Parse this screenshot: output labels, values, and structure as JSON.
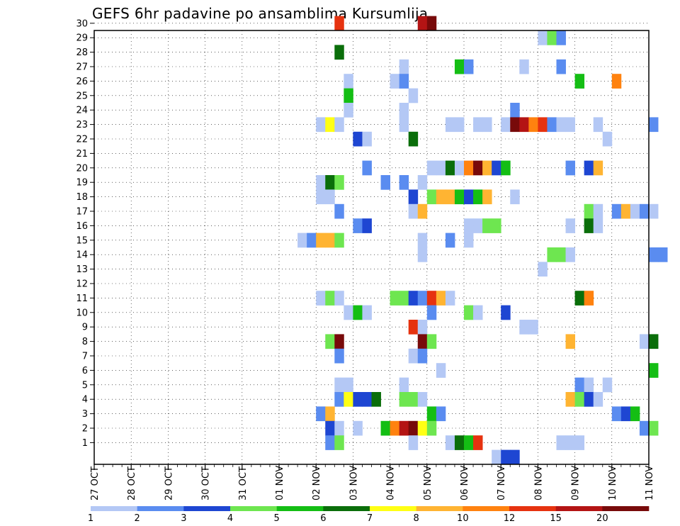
{
  "chart_data": {
    "type": "heatmap",
    "title": "GEFS 6hr padavine po ansamblima Kursumlija",
    "x_ticks": [
      "27 OCT",
      "28 OCT",
      "29 OCT",
      "30 OCT",
      "31 OCT",
      "01 NOV",
      "02 NOV",
      "03 NOV",
      "04 NOV",
      "05 NOV",
      "06 NOV",
      "07 NOV",
      "08 NOV",
      "09 NOV",
      "10 NOV",
      "11 NOV"
    ],
    "y_ticks": [
      1,
      2,
      3,
      4,
      5,
      6,
      7,
      8,
      9,
      10,
      11,
      12,
      13,
      14,
      15,
      16,
      17,
      18,
      19,
      20,
      21,
      22,
      23,
      24,
      25,
      26,
      27,
      28,
      29,
      30
    ],
    "grid": true,
    "legend": {
      "placement": "bottom",
      "labels": [
        "1",
        "2",
        "3",
        "4",
        "5",
        "6",
        "7",
        "8",
        "10",
        "12",
        "15",
        "20"
      ],
      "colors": [
        "#b4c8f5",
        "#5a8cf0",
        "#1e46d2",
        "#6ee650",
        "#14be14",
        "#0a6e0a",
        "#ffff14",
        "#ffb432",
        "#ff820f",
        "#e6320f",
        "#b41414",
        "#780a0a"
      ]
    },
    "level_colors": [
      "#b4c8f5",
      "#5a8cf0",
      "#1e46d2",
      "#6ee650",
      "#14be14",
      "#0a6e0a",
      "#ffff14",
      "#ffb432",
      "#ff820f",
      "#e6320f",
      "#b41414",
      "#780a0a"
    ],
    "cells": [
      {
        "member": 30,
        "start": 26,
        "levels": [
          9
        ]
      },
      {
        "member": 30,
        "start": 35,
        "levels": [
          10,
          11
        ]
      },
      {
        "member": 29,
        "start": 48,
        "levels": [
          0,
          3,
          1
        ]
      },
      {
        "member": 28,
        "start": 26,
        "levels": [
          5
        ]
      },
      {
        "member": 27,
        "start": 33,
        "levels": [
          0
        ]
      },
      {
        "member": 27,
        "start": 39,
        "levels": [
          4,
          1
        ]
      },
      {
        "member": 27,
        "start": 46,
        "levels": [
          0
        ]
      },
      {
        "member": 27,
        "start": 50,
        "levels": [
          1
        ]
      },
      {
        "member": 26,
        "start": 27,
        "levels": [
          0
        ]
      },
      {
        "member": 26,
        "start": 32,
        "levels": [
          0,
          1
        ]
      },
      {
        "member": 26,
        "start": 52,
        "levels": [
          4
        ]
      },
      {
        "member": 26,
        "start": 56,
        "levels": [
          8
        ]
      },
      {
        "member": 25,
        "start": 27,
        "levels": [
          4
        ]
      },
      {
        "member": 25,
        "start": 34,
        "levels": [
          0
        ]
      },
      {
        "member": 24,
        "start": 27,
        "levels": [
          0
        ]
      },
      {
        "member": 24,
        "start": 33,
        "levels": [
          0
        ]
      },
      {
        "member": 24,
        "start": 45,
        "levels": [
          1
        ]
      },
      {
        "member": 23,
        "start": 24,
        "levels": [
          0,
          6,
          0
        ]
      },
      {
        "member": 23,
        "start": 33,
        "levels": [
          0
        ]
      },
      {
        "member": 23,
        "start": 38,
        "levels": [
          0,
          0
        ]
      },
      {
        "member": 23,
        "start": 41,
        "levels": [
          0,
          0
        ]
      },
      {
        "member": 23,
        "start": 44,
        "levels": [
          0,
          11,
          10,
          8,
          9,
          1,
          0,
          0
        ]
      },
      {
        "member": 23,
        "start": 54,
        "levels": [
          0
        ]
      },
      {
        "member": 23,
        "start": 60,
        "levels": [
          1
        ]
      },
      {
        "member": 22,
        "start": 28,
        "levels": [
          2,
          0
        ]
      },
      {
        "member": 22,
        "start": 34,
        "levels": [
          5
        ]
      },
      {
        "member": 22,
        "start": 55,
        "levels": [
          0
        ]
      },
      {
        "member": 20,
        "start": 29,
        "levels": [
          1
        ]
      },
      {
        "member": 20,
        "start": 36,
        "levels": [
          0,
          0,
          5,
          0,
          8,
          11,
          7,
          2,
          4
        ]
      },
      {
        "member": 20,
        "start": 51,
        "levels": [
          1
        ]
      },
      {
        "member": 20,
        "start": 53,
        "levels": [
          2,
          7
        ]
      },
      {
        "member": 19,
        "start": 24,
        "levels": [
          0,
          5,
          3
        ]
      },
      {
        "member": 19,
        "start": 31,
        "levels": [
          1
        ]
      },
      {
        "member": 19,
        "start": 33,
        "levels": [
          1
        ]
      },
      {
        "member": 19,
        "start": 35,
        "levels": [
          0
        ]
      },
      {
        "member": 18,
        "start": 24,
        "levels": [
          0,
          0
        ]
      },
      {
        "member": 18,
        "start": 34,
        "levels": [
          2
        ]
      },
      {
        "member": 18,
        "start": 36,
        "levels": [
          3,
          7,
          7,
          4,
          2,
          4,
          7
        ]
      },
      {
        "member": 18,
        "start": 45,
        "levels": [
          0
        ]
      },
      {
        "member": 17,
        "start": 26,
        "levels": [
          1
        ]
      },
      {
        "member": 17,
        "start": 34,
        "levels": [
          0,
          7
        ]
      },
      {
        "member": 17,
        "start": 53,
        "levels": [
          3,
          0
        ]
      },
      {
        "member": 17,
        "start": 56,
        "levels": [
          1,
          7,
          0,
          1,
          0
        ]
      },
      {
        "member": 16,
        "start": 28,
        "levels": [
          1,
          2
        ]
      },
      {
        "member": 16,
        "start": 40,
        "levels": [
          0,
          0,
          3,
          3
        ]
      },
      {
        "member": 16,
        "start": 51,
        "levels": [
          0
        ]
      },
      {
        "member": 16,
        "start": 53,
        "levels": [
          5
        ]
      },
      {
        "member": 16,
        "start": 54,
        "levels": [
          0
        ]
      },
      {
        "member": 15,
        "start": 22,
        "levels": [
          0,
          1,
          7,
          7,
          3
        ]
      },
      {
        "member": 15,
        "start": 35,
        "levels": [
          0
        ]
      },
      {
        "member": 15,
        "start": 38,
        "levels": [
          1
        ]
      },
      {
        "member": 15,
        "start": 40,
        "levels": [
          0
        ]
      },
      {
        "member": 14,
        "start": 35,
        "levels": [
          0
        ]
      },
      {
        "member": 14,
        "start": 49,
        "levels": [
          3,
          3,
          0
        ]
      },
      {
        "member": 14,
        "start": 60,
        "levels": [
          1,
          1
        ]
      },
      {
        "member": 13,
        "start": 48,
        "levels": [
          0
        ]
      },
      {
        "member": 11,
        "start": 24,
        "levels": [
          0,
          3,
          0
        ]
      },
      {
        "member": 11,
        "start": 32,
        "levels": [
          3,
          3,
          2,
          1,
          9,
          7,
          0
        ]
      },
      {
        "member": 11,
        "start": 52,
        "levels": [
          5,
          8
        ]
      },
      {
        "member": 10,
        "start": 27,
        "levels": [
          0,
          4,
          0
        ]
      },
      {
        "member": 10,
        "start": 36,
        "levels": [
          1
        ]
      },
      {
        "member": 10,
        "start": 40,
        "levels": [
          3,
          0
        ]
      },
      {
        "member": 10,
        "start": 44,
        "levels": [
          2
        ]
      },
      {
        "member": 9,
        "start": 34,
        "levels": [
          9,
          0
        ]
      },
      {
        "member": 9,
        "start": 46,
        "levels": [
          0,
          0
        ]
      },
      {
        "member": 8,
        "start": 25,
        "levels": [
          3,
          11
        ]
      },
      {
        "member": 8,
        "start": 35,
        "levels": [
          11,
          3
        ]
      },
      {
        "member": 8,
        "start": 51,
        "levels": [
          7
        ]
      },
      {
        "member": 8,
        "start": 59,
        "levels": [
          0,
          5
        ]
      },
      {
        "member": 7,
        "start": 26,
        "levels": [
          1
        ]
      },
      {
        "member": 7,
        "start": 34,
        "levels": [
          0,
          1
        ]
      },
      {
        "member": 6,
        "start": 37,
        "levels": [
          0
        ]
      },
      {
        "member": 6,
        "start": 60,
        "levels": [
          4
        ]
      },
      {
        "member": 5,
        "start": 26,
        "levels": [
          0,
          0
        ]
      },
      {
        "member": 5,
        "start": 33,
        "levels": [
          0
        ]
      },
      {
        "member": 5,
        "start": 52,
        "levels": [
          1,
          0
        ]
      },
      {
        "member": 5,
        "start": 55,
        "levels": [
          0
        ]
      },
      {
        "member": 4,
        "start": 26,
        "levels": [
          1,
          6,
          2,
          2,
          5
        ]
      },
      {
        "member": 4,
        "start": 33,
        "levels": [
          3,
          3,
          0
        ]
      },
      {
        "member": 4,
        "start": 51,
        "levels": [
          7,
          3,
          2,
          0
        ]
      },
      {
        "member": 3,
        "start": 24,
        "levels": [
          1,
          7
        ]
      },
      {
        "member": 3,
        "start": 36,
        "levels": [
          4,
          1
        ]
      },
      {
        "member": 3,
        "start": 56,
        "levels": [
          1,
          2,
          4
        ]
      },
      {
        "member": 2,
        "start": 25,
        "levels": [
          2,
          0
        ]
      },
      {
        "member": 2,
        "start": 28,
        "levels": [
          0
        ]
      },
      {
        "member": 2,
        "start": 31,
        "levels": [
          4,
          8,
          10,
          11,
          6,
          3
        ]
      },
      {
        "member": 2,
        "start": 59,
        "levels": [
          1,
          3
        ]
      },
      {
        "member": 1,
        "start": 25,
        "levels": [
          1,
          3
        ]
      },
      {
        "member": 1,
        "start": 34,
        "levels": [
          0
        ]
      },
      {
        "member": 1,
        "start": 38,
        "levels": [
          0,
          5,
          4,
          9
        ]
      },
      {
        "member": 1,
        "start": 50,
        "levels": [
          0,
          0,
          0
        ]
      },
      {
        "member": 0,
        "start": 43,
        "levels": [
          0,
          2,
          2
        ]
      }
    ]
  }
}
